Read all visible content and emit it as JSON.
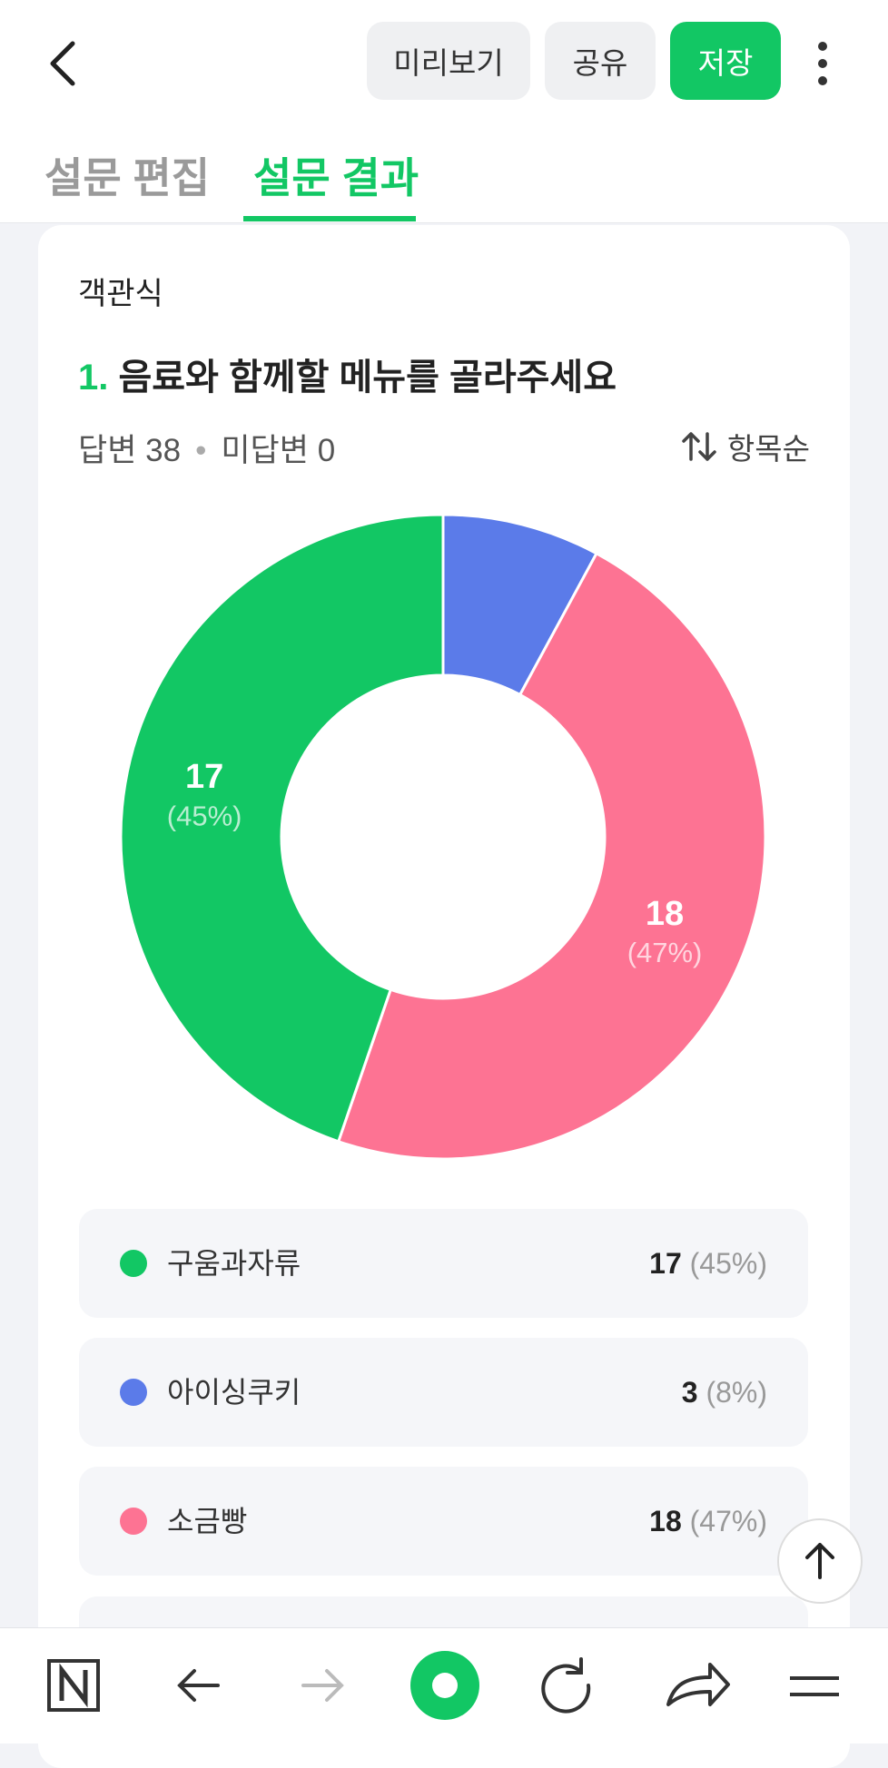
{
  "header": {
    "preview": "미리보기",
    "share": "공유",
    "save": "저장"
  },
  "tabs": [
    "설문 편집",
    "설문 결과"
  ],
  "question": {
    "kind": "객관식",
    "number": "1.",
    "title": "음료와 함께할 메뉴를 골라주세요",
    "answered_label": "답변",
    "answered": 38,
    "unanswered_label": "미답변",
    "unanswered": 0,
    "sort": "항목순"
  },
  "chart_data": {
    "type": "pie",
    "categories": [
      "구움과자류",
      "아이싱쿠키",
      "소금빵"
    ],
    "values": [
      17,
      3,
      18
    ],
    "percents": [
      45,
      8,
      47
    ],
    "percent_labels": [
      "(45%)",
      "(8%)",
      "(47%)"
    ],
    "colors": [
      "#12c764",
      "#5b7be9",
      "#fd7393"
    ]
  }
}
